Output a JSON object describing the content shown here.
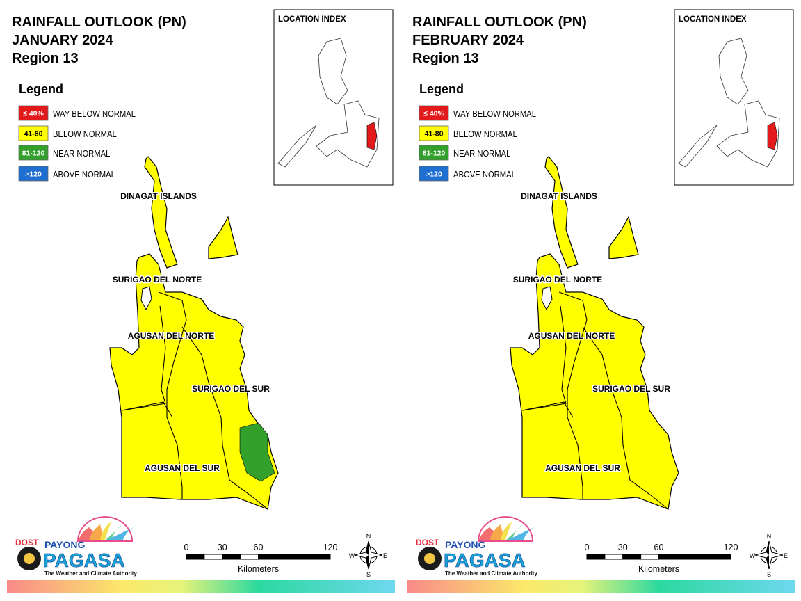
{
  "panels": [
    {
      "title": [
        "RAINFALL OUTLOOK (PN)",
        "JANUARY 2024",
        "Region 13"
      ],
      "legend": {
        "title": "Legend",
        "items": [
          {
            "swatch": "≤ 40%",
            "label": "WAY BELOW NORMAL",
            "color": "#e31a1c"
          },
          {
            "swatch": "41-80",
            "label": "BELOW NORMAL",
            "color": "#ffff00"
          },
          {
            "swatch": "81-120",
            "label": "NEAR NORMAL",
            "color": "#33a02c"
          },
          {
            "swatch": ">120",
            "label": "ABOVE NORMAL",
            "color": "#1f6fd1"
          }
        ]
      },
      "location_index": "LOCATION INDEX",
      "provinces": [
        "DINAGAT ISLANDS",
        "SURIGAO DEL NORTE",
        "AGUSAN DEL NORTE",
        "SURIGAO DEL SUR",
        "AGUSAN DEL SUR"
      ],
      "near_normal_zone": true,
      "scale": {
        "ticks": [
          0,
          30,
          60,
          120
        ],
        "unit": "Kilometers"
      },
      "compass": [
        "N",
        "E",
        "S",
        "W"
      ],
      "logo": {
        "agency": "DOST",
        "brand_top": "PAYONG",
        "brand": "PAGASA",
        "tagline": "The Weather and Climate Authority"
      }
    },
    {
      "title": [
        "RAINFALL OUTLOOK (PN)",
        "FEBRUARY 2024",
        "Region 13"
      ],
      "legend": {
        "title": "Legend",
        "items": [
          {
            "swatch": "≤ 40%",
            "label": "WAY BELOW NORMAL",
            "color": "#e31a1c"
          },
          {
            "swatch": "41-80",
            "label": "BELOW NORMAL",
            "color": "#ffff00"
          },
          {
            "swatch": "81-120",
            "label": "NEAR NORMAL",
            "color": "#33a02c"
          },
          {
            "swatch": ">120",
            "label": "ABOVE NORMAL",
            "color": "#1f6fd1"
          }
        ]
      },
      "location_index": "LOCATION INDEX",
      "provinces": [
        "DINAGAT ISLANDS",
        "SURIGAO DEL NORTE",
        "AGUSAN DEL NORTE",
        "SURIGAO DEL SUR",
        "AGUSAN DEL SUR"
      ],
      "near_normal_zone": false,
      "scale": {
        "ticks": [
          0,
          30,
          60,
          120
        ],
        "unit": "Kilometers"
      },
      "compass": [
        "N",
        "E",
        "S",
        "W"
      ],
      "logo": {
        "agency": "DOST",
        "brand_top": "PAYONG",
        "brand": "PAGASA",
        "tagline": "The Weather and Climate Authority"
      }
    }
  ]
}
